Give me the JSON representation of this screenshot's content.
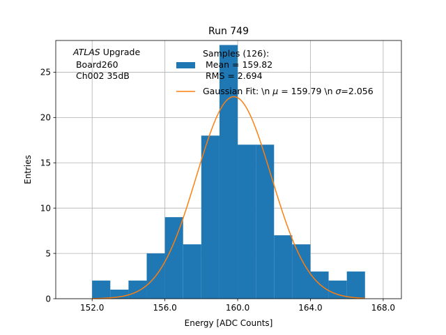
{
  "chart_data": {
    "type": "bar",
    "title": "Run 749",
    "xlabel": "Energy [ADC Counts]",
    "ylabel": "Entries",
    "xlim": [
      150.0,
      169.0
    ],
    "ylim": [
      0,
      28.5
    ],
    "xticks": [
      152.0,
      156.0,
      160.0,
      164.0,
      168.0
    ],
    "xtick_labels": [
      "152.0",
      "156.0",
      "160.0",
      "164.0",
      "168.0"
    ],
    "yticks": [
      0,
      5,
      10,
      15,
      20,
      25
    ],
    "ytick_labels": [
      "0",
      "5",
      "10",
      "15",
      "20",
      "25"
    ],
    "grid": true,
    "bins": [
      {
        "x0": 152,
        "x1": 153,
        "count": 2
      },
      {
        "x0": 153,
        "x1": 154,
        "count": 1
      },
      {
        "x0": 154,
        "x1": 155,
        "count": 2
      },
      {
        "x0": 155,
        "x1": 156,
        "count": 5
      },
      {
        "x0": 156,
        "x1": 157,
        "count": 9
      },
      {
        "x0": 157,
        "x1": 158,
        "count": 6
      },
      {
        "x0": 158,
        "x1": 159,
        "count": 18
      },
      {
        "x0": 159,
        "x1": 160,
        "count": 28
      },
      {
        "x0": 160,
        "x1": 161,
        "count": 17
      },
      {
        "x0": 161,
        "x1": 162,
        "count": 17
      },
      {
        "x0": 162,
        "x1": 163,
        "count": 7
      },
      {
        "x0": 163,
        "x1": 164,
        "count": 6
      },
      {
        "x0": 164,
        "x1": 165,
        "count": 3
      },
      {
        "x0": 165,
        "x1": 166,
        "count": 2
      },
      {
        "x0": 166,
        "x1": 167,
        "count": 3
      }
    ],
    "fit": {
      "mu": 159.79,
      "sigma": 2.056,
      "amplitude": 22.3,
      "x_range": [
        152.0,
        167.0
      ]
    },
    "colors": {
      "histogram": "#1f77b4",
      "fit": "#ff7f0e",
      "grid": "#b0b0b0"
    },
    "legend_position": "top-right",
    "legend": {
      "samples_lines": [
        "Samples (126):",
        " Mean = 159.82",
        " RMS = 2.694"
      ],
      "fit_label_prefix": "Gaussian Fit: \\n ",
      "fit_mu_symbol": "μ",
      "fit_mu_text": " = 159.79 \\n ",
      "fit_sigma_symbol": "σ",
      "fit_sigma_text": "=2.056"
    },
    "annotation": {
      "atlas": "ATLAS",
      "upgrade": " Upgrade",
      "line2": " Board260",
      "line3": " Ch002 35dB"
    }
  }
}
